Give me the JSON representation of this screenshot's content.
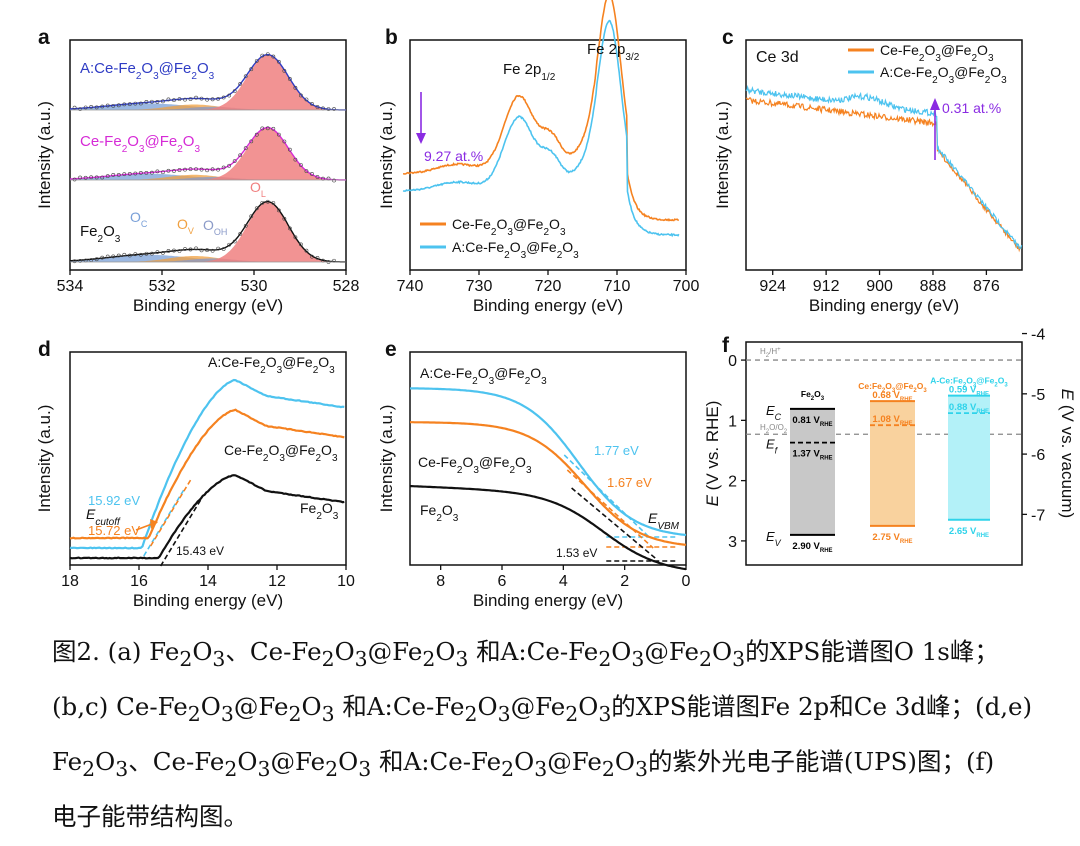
{
  "chart_data": [
    {
      "panel": "a",
      "type": "line",
      "xlabel": "Binding energy (eV)",
      "ylabel": "Intensity (a.u.)",
      "xlim": [
        534,
        528
      ],
      "xticks": [
        "534",
        "532",
        "530",
        "528"
      ],
      "samples": [
        {
          "id": "A",
          "label": "A:Ce-Fe2O3@Fe2O3",
          "label_html": "A:Ce-Fe<tspan baseline-shift='sub' font-size='10'>2</tspan>O<tspan baseline-shift='sub' font-size='10'>3</tspan>@Fe<tspan baseline-shift='sub' font-size='10'>2</tspan>O<tspan baseline-shift='sub' font-size='10'>3</tspan>",
          "color": "#2f3cc4"
        },
        {
          "id": "C",
          "label": "Ce-Fe2O3@Fe2O3",
          "label_html": "Ce-Fe<tspan baseline-shift='sub' font-size='10'>2</tspan>O<tspan baseline-shift='sub' font-size='10'>3</tspan>@Fe<tspan baseline-shift='sub' font-size='10'>2</tspan>O<tspan baseline-shift='sub' font-size='10'>3</tspan>",
          "color": "#d62ad6"
        },
        {
          "id": "F",
          "label": "Fe2O3",
          "label_html": "Fe<tspan baseline-shift='sub' font-size='10'>2</tspan>O<tspan baseline-shift='sub' font-size='10'>3</tspan>",
          "color": "#111111"
        }
      ],
      "components": [
        {
          "name": "OL",
          "label_html": "O<tspan baseline-shift='sub' font-size='9'>L</tspan>",
          "center_eV": 529.7,
          "color": "#f08080"
        },
        {
          "name": "OV",
          "label_html": "O<tspan baseline-shift='sub' font-size='9'>V</tspan>",
          "center_eV": 531.3,
          "color": "#f0a040"
        },
        {
          "name": "OOH",
          "label_html": "O<tspan baseline-shift='sub' font-size='9'>OH</tspan>",
          "center_eV": 530.9,
          "color": "#8a9ac8"
        },
        {
          "name": "OC",
          "label_html": "O<tspan baseline-shift='sub' font-size='9'>C</tspan>",
          "center_eV": 532.3,
          "color": "#7aa0d8"
        }
      ]
    },
    {
      "panel": "b",
      "type": "line",
      "xlabel": "Binding energy (eV)",
      "ylabel": "Intensity (a.u.)",
      "xlim": [
        740,
        700
      ],
      "xticks": [
        "740",
        "730",
        "720",
        "710",
        "700"
      ],
      "peaks": [
        {
          "label_html": "Fe 2p<tspan baseline-shift='sub' font-size='10'>1/2</tspan>",
          "eV": 724
        },
        {
          "label_html": "Fe 2p<tspan baseline-shift='sub' font-size='10'>3/2</tspan>",
          "eV": 711
        }
      ],
      "annotation": "9.27 at.%",
      "series": [
        {
          "name": "Ce-Fe2O3@Fe2O3",
          "label_html": "Ce-Fe<tspan baseline-shift='sub' font-size='10'>2</tspan>O<tspan baseline-shift='sub' font-size='10'>3</tspan>@Fe<tspan baseline-shift='sub' font-size='10'>2</tspan>O<tspan baseline-shift='sub' font-size='10'>3</tspan>",
          "color": "#f58220"
        },
        {
          "name": "A:Ce-Fe2O3@Fe2O3",
          "label_html": "A:Ce-Fe<tspan baseline-shift='sub' font-size='10'>2</tspan>O<tspan baseline-shift='sub' font-size='10'>3</tspan>@Fe<tspan baseline-shift='sub' font-size='10'>2</tspan>O<tspan baseline-shift='sub' font-size='10'>3</tspan>",
          "color": "#4dc3ef"
        }
      ]
    },
    {
      "panel": "c",
      "type": "line",
      "title": "Ce 3d",
      "xlabel": "Binding energy (eV)",
      "ylabel": "Intensity (a.u.)",
      "xlim": [
        930,
        868
      ],
      "xticks": [
        "924",
        "912",
        "900",
        "888",
        "876"
      ],
      "annotation": "0.31 at.%",
      "series": [
        {
          "name": "Ce-Fe2O3@Fe2O3",
          "label_html": "Ce-Fe<tspan baseline-shift='sub' font-size='10'>2</tspan>O<tspan baseline-shift='sub' font-size='10'>3</tspan>@Fe<tspan baseline-shift='sub' font-size='10'>2</tspan>O<tspan baseline-shift='sub' font-size='10'>3</tspan>",
          "color": "#f58220"
        },
        {
          "name": "A:Ce-Fe2O3@Fe2O3",
          "label_html": "A:Ce-Fe<tspan baseline-shift='sub' font-size='10'>2</tspan>O<tspan baseline-shift='sub' font-size='10'>3</tspan>@Fe<tspan baseline-shift='sub' font-size='10'>2</tspan>O<tspan baseline-shift='sub' font-size='10'>3</tspan>",
          "color": "#4dc3ef"
        }
      ]
    },
    {
      "panel": "d",
      "type": "line",
      "xlabel": "Binding energy (eV)",
      "ylabel": "Intensity (a.u.)",
      "xlim": [
        18,
        10
      ],
      "xticks": [
        "18",
        "16",
        "14",
        "12",
        "10"
      ],
      "cutoff_label_html": "E<tspan baseline-shift='sub' font-size='10'>cutoff</tspan>",
      "series": [
        {
          "name": "A:Ce-Fe2O3@Fe2O3",
          "label_html": "A:Ce-Fe<tspan baseline-shift='sub' font-size='10'>2</tspan>O<tspan baseline-shift='sub' font-size='10'>3</tspan>@Fe<tspan baseline-shift='sub' font-size='10'>2</tspan>O<tspan baseline-shift='sub' font-size='10'>3</tspan>",
          "color": "#4dc3ef",
          "cutoff_eV": 15.92,
          "cutoff_label": "15.92 eV"
        },
        {
          "name": "Ce-Fe2O3@Fe2O3",
          "label_html": "Ce-Fe<tspan baseline-shift='sub' font-size='10'>2</tspan>O<tspan baseline-shift='sub' font-size='10'>3</tspan>@Fe<tspan baseline-shift='sub' font-size='10'>2</tspan>O<tspan baseline-shift='sub' font-size='10'>3</tspan>",
          "color": "#f58220",
          "cutoff_eV": 15.72,
          "cutoff_label": "15.72 eV"
        },
        {
          "name": "Fe2O3",
          "label_html": "Fe<tspan baseline-shift='sub' font-size='10'>2</tspan>O<tspan baseline-shift='sub' font-size='10'>3</tspan>",
          "color": "#111111",
          "cutoff_eV": 15.43,
          "cutoff_label": "15.43 eV"
        }
      ]
    },
    {
      "panel": "e",
      "type": "line",
      "xlabel": "Binding energy (eV)",
      "ylabel": "Intensity (a.u.)",
      "xlim": [
        9,
        0
      ],
      "xticks": [
        "8",
        "6",
        "4",
        "2",
        "0"
      ],
      "vbm_label_html": "E<tspan baseline-shift='sub' font-size='10'>VBM</tspan>",
      "series": [
        {
          "name": "A:Ce-Fe2O3@Fe2O3",
          "label_html": "A:Ce-Fe<tspan baseline-shift='sub' font-size='10'>2</tspan>O<tspan baseline-shift='sub' font-size='10'>3</tspan>@Fe<tspan baseline-shift='sub' font-size='10'>2</tspan>O<tspan baseline-shift='sub' font-size='10'>3</tspan>",
          "color": "#4dc3ef",
          "vbm_eV": 1.77,
          "vbm_label": "1.77 eV"
        },
        {
          "name": "Ce-Fe2O3@Fe2O3",
          "label_html": "Ce-Fe<tspan baseline-shift='sub' font-size='10'>2</tspan>O<tspan baseline-shift='sub' font-size='10'>3</tspan>@Fe<tspan baseline-shift='sub' font-size='10'>2</tspan>O<tspan baseline-shift='sub' font-size='10'>3</tspan>",
          "color": "#f58220",
          "vbm_eV": 1.67,
          "vbm_label": "1.67 eV"
        },
        {
          "name": "Fe2O3",
          "label_html": "Fe<tspan baseline-shift='sub' font-size='10'>2</tspan>O<tspan baseline-shift='sub' font-size='10'>3</tspan>",
          "color": "#111111",
          "vbm_eV": 1.53,
          "vbm_label": "1.53 eV"
        }
      ]
    },
    {
      "panel": "f",
      "type": "bar",
      "ylabel_left_html": "<tspan font-style='italic'>E</tspan> (V vs. RHE)",
      "ylabel_right_html": "<tspan font-style='italic'>E</tspan> (V vs. vacuum)",
      "ylim_left": [
        -0.3,
        3.4
      ],
      "yticks_left": [
        "0",
        "1",
        "2",
        "3"
      ],
      "yticks_right": [
        "-4",
        "-5",
        "-6",
        "-7"
      ],
      "reference_lines": [
        {
          "label_html": "H<tspan baseline-shift='sub' font-size='6'>2</tspan>/H<tspan baseline-shift='super' font-size='6'>+</tspan>",
          "value": 0.0
        },
        {
          "label_html": "H<tspan baseline-shift='sub' font-size='6'>2</tspan>O/O<tspan baseline-shift='sub' font-size='6'>2</tspan>",
          "value": 1.23
        }
      ],
      "level_labels": {
        "Ec": "E<tspan baseline-shift='sub' font-size='9'>C</tspan>",
        "Ef": "E<tspan baseline-shift='sub' font-size='9'>f</tspan>",
        "Ev": "E<tspan baseline-shift='sub' font-size='9'>V</tspan>"
      },
      "materials": [
        {
          "name_html": "Fe<tspan baseline-shift='sub' font-size='6'>2</tspan>O<tspan baseline-shift='sub' font-size='6'>3</tspan>",
          "color": "#000000",
          "fill": "#c8c8c8",
          "Ec": 0.81,
          "Ef": 1.37,
          "Ev": 2.9,
          "Ec_label_html": "0.81 V<tspan baseline-shift='sub' font-size='6'>RHE</tspan>",
          "Ef_label_html": "1.37 V<tspan baseline-shift='sub' font-size='6'>RHE</tspan>",
          "Ev_label_html": "2.90 V<tspan baseline-shift='sub' font-size='6'>RHE</tspan>"
        },
        {
          "name_html": "Ce:Fe<tspan baseline-shift='sub' font-size='6'>2</tspan>O<tspan baseline-shift='sub' font-size='6'>3</tspan>@Fe<tspan baseline-shift='sub' font-size='6'>2</tspan>O<tspan baseline-shift='sub' font-size='6'>3</tspan>",
          "color": "#f58220",
          "fill": "#f9d29e",
          "Ec": 0.68,
          "Ef": 1.08,
          "Ev": 2.75,
          "Ec_label_html": "0.68 V<tspan baseline-shift='sub' font-size='6'>RHE</tspan>",
          "Ef_label_html": "1.08 V<tspan baseline-shift='sub' font-size='6'>RHE</tspan>",
          "Ev_label_html": "2.75 V<tspan baseline-shift='sub' font-size='6'>RHE</tspan>"
        },
        {
          "name_html": "A-Ce:Fe<tspan baseline-shift='sub' font-size='6'>2</tspan>O<tspan baseline-shift='sub' font-size='6'>3</tspan>@Fe<tspan baseline-shift='sub' font-size='6'>2</tspan>O<tspan baseline-shift='sub' font-size='6'>3</tspan>",
          "color": "#2fd3ea",
          "fill": "#b3f1f8",
          "Ec": 0.59,
          "Ef": 0.88,
          "Ev": 2.65,
          "Ec_label_html": "0.59 V<tspan baseline-shift='sub' font-size='6'>RHE</tspan>",
          "Ef_label_html": "0.88 V<tspan baseline-shift='sub' font-size='6'>RHE</tspan>",
          "Ev_label_html": "2.65 V<tspan baseline-shift='sub' font-size='6'>RHE</tspan>"
        }
      ]
    }
  ],
  "caption": {
    "lines_html": [
      "图2. (a) Fe<sub>2</sub>O<sub>3</sub>、Ce-Fe<sub>2</sub>O<sub>3</sub>@Fe<sub>2</sub>O<sub>3</sub> 和A:Ce-Fe<sub>2</sub>O<sub>3</sub>@Fe<sub>2</sub>O<sub>3</sub>的XPS能谱图O 1s峰；",
      "(b,c) Ce-Fe<sub>2</sub>O<sub>3</sub>@Fe<sub>2</sub>O<sub>3</sub> 和A:Ce-Fe<sub>2</sub>O<sub>3</sub>@Fe<sub>2</sub>O<sub>3</sub>的XPS能谱图Fe 2p和Ce 3d峰；(d,e)",
      "Fe<sub>2</sub>O<sub>3</sub>、Ce-Fe<sub>2</sub>O<sub>3</sub>@Fe<sub>2</sub>O<sub>3</sub> 和A:Ce-Fe<sub>2</sub>O<sub>3</sub>@Fe<sub>2</sub>O<sub>3</sub>的紫外光电子能谱(UPS)图；(f)",
      "电子能带结构图。"
    ]
  },
  "panel_letters": [
    "a",
    "b",
    "c",
    "d",
    "e",
    "f"
  ]
}
